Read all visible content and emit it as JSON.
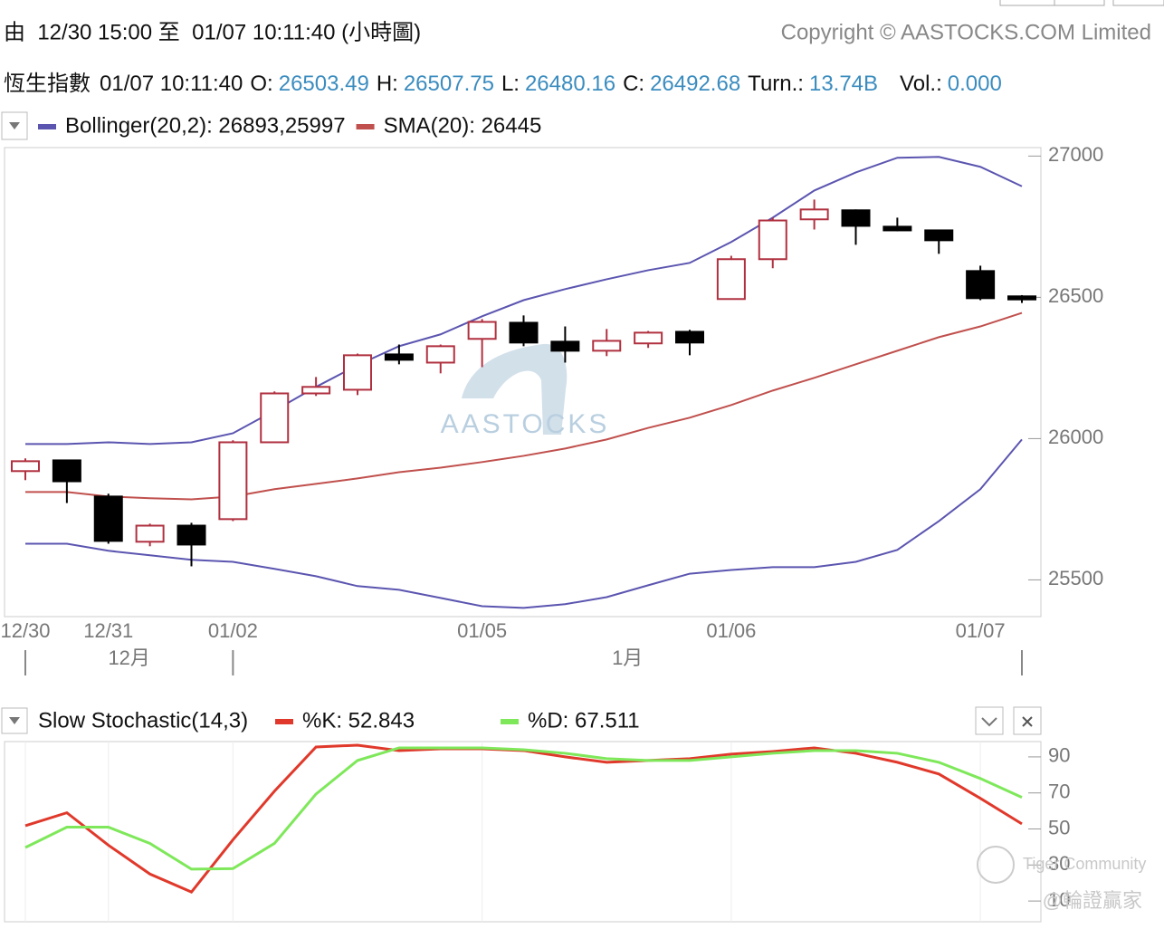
{
  "header": {
    "range": "由  12/30 15:00 至  01/07 10:11:40 (小時圖)",
    "copyright": "Copyright © AASTOCKS.COM Limited"
  },
  "quote": {
    "name": "恆生指數",
    "time": "01/07 10:11:40",
    "fields": [
      {
        "label": "O:",
        "value": "26503.49"
      },
      {
        "label": "H:",
        "value": "26507.75"
      },
      {
        "label": "L:",
        "value": "26480.16"
      },
      {
        "label": "C:",
        "value": "26492.68"
      },
      {
        "label": "Turn.:",
        "value": "13.74B"
      },
      {
        "label": "Vol.:",
        "value": "0.000"
      }
    ]
  },
  "watermarks": {
    "logo": "AASTOCKS",
    "community": "Tiger Community",
    "handle": "@輪證贏家"
  },
  "chart_data": [
    {
      "type": "candlestick",
      "categories": [
        "12/30",
        null,
        "12/31",
        null,
        null,
        "01/02",
        null,
        null,
        null,
        null,
        null,
        "01/05",
        null,
        null,
        null,
        null,
        null,
        "01/06",
        null,
        null,
        null,
        null,
        null,
        "01/07",
        null
      ],
      "months": [
        "12月",
        "1月"
      ],
      "open": [
        25885,
        25923,
        25795,
        25635,
        25692,
        25715,
        25987,
        26160,
        26173,
        26298,
        26269,
        26353,
        26410,
        26343,
        26311,
        26337,
        26378,
        26494,
        26635,
        26776,
        26808,
        26750,
        26737,
        26593,
        26503.49
      ],
      "high": [
        25930,
        25923,
        25805,
        25699,
        25702,
        25994,
        26167,
        26218,
        26301,
        26333,
        26333,
        26423,
        26436,
        26397,
        26388,
        26381,
        26385,
        26647,
        26782,
        26846,
        26811,
        26782,
        26740,
        26612,
        26507.75
      ],
      "low": [
        25853,
        25772,
        25628,
        25619,
        25548,
        25708,
        25987,
        26151,
        26154,
        26263,
        26231,
        26253,
        26327,
        26269,
        26292,
        26321,
        26295,
        26494,
        26603,
        26740,
        26686,
        26734,
        26654,
        26490,
        26480.16
      ],
      "close": [
        25920,
        25849,
        25638,
        25692,
        25625,
        25987,
        26160,
        26183,
        26295,
        26279,
        26327,
        26413,
        26340,
        26311,
        26346,
        26375,
        26340,
        26635,
        26772,
        26811,
        26753,
        26737,
        26702,
        26497,
        26492.68
      ],
      "up_color": "#b0303f",
      "down_color": "#000000",
      "series": [
        {
          "name": "Bollinger(20,2): 26893,25997",
          "color": "#5b55b0",
          "upper": [
            25981,
            25981,
            25987,
            25981,
            25987,
            26019,
            26099,
            26183,
            26260,
            26327,
            26369,
            26433,
            26490,
            26529,
            26564,
            26596,
            26622,
            26696,
            26782,
            26878,
            26942,
            26994,
            26997,
            26962,
            26893
          ],
          "lower": [
            25628,
            25628,
            25603,
            25587,
            25571,
            25564,
            25539,
            25513,
            25478,
            25465,
            25436,
            25407,
            25401,
            25414,
            25439,
            25481,
            25522,
            25535,
            25545,
            25545,
            25564,
            25606,
            25708,
            25821,
            25997
          ]
        },
        {
          "name": "SMA(20): 26445",
          "color": "#c0504d",
          "values": [
            25811,
            25811,
            25795,
            25789,
            25785,
            25795,
            25821,
            25840,
            25859,
            25881,
            25897,
            25917,
            25939,
            25965,
            25997,
            26038,
            26074,
            26119,
            26170,
            26215,
            26263,
            26311,
            26359,
            26397,
            26445
          ]
        }
      ],
      "ylim": [
        25370,
        27030
      ],
      "yticks": [
        25500,
        26000,
        26500,
        27000
      ]
    },
    {
      "type": "line",
      "title": "Slow Stochastic(14,3)",
      "series": [
        {
          "name": "%K: 52.843",
          "color": "#e0392b",
          "values": [
            51.8,
            59,
            41,
            25,
            15,
            44,
            71,
            95.5,
            96.5,
            93.5,
            94.5,
            94.5,
            93.5,
            90,
            87,
            88,
            89,
            91.5,
            93,
            95,
            92,
            87,
            80.5,
            67,
            52.843
          ]
        },
        {
          "name": "%D: 67.511",
          "color": "#7ee85a",
          "values": [
            39.7,
            51,
            51,
            42,
            27.7,
            28,
            42,
            69.4,
            88,
            95,
            95,
            95,
            94,
            92,
            89,
            88,
            88,
            90,
            92,
            93.5,
            93.5,
            92,
            87,
            78,
            67.511
          ]
        }
      ],
      "ylim": [
        -1.5,
        98.5
      ],
      "yticks": [
        10,
        30,
        50,
        70,
        90
      ]
    }
  ]
}
